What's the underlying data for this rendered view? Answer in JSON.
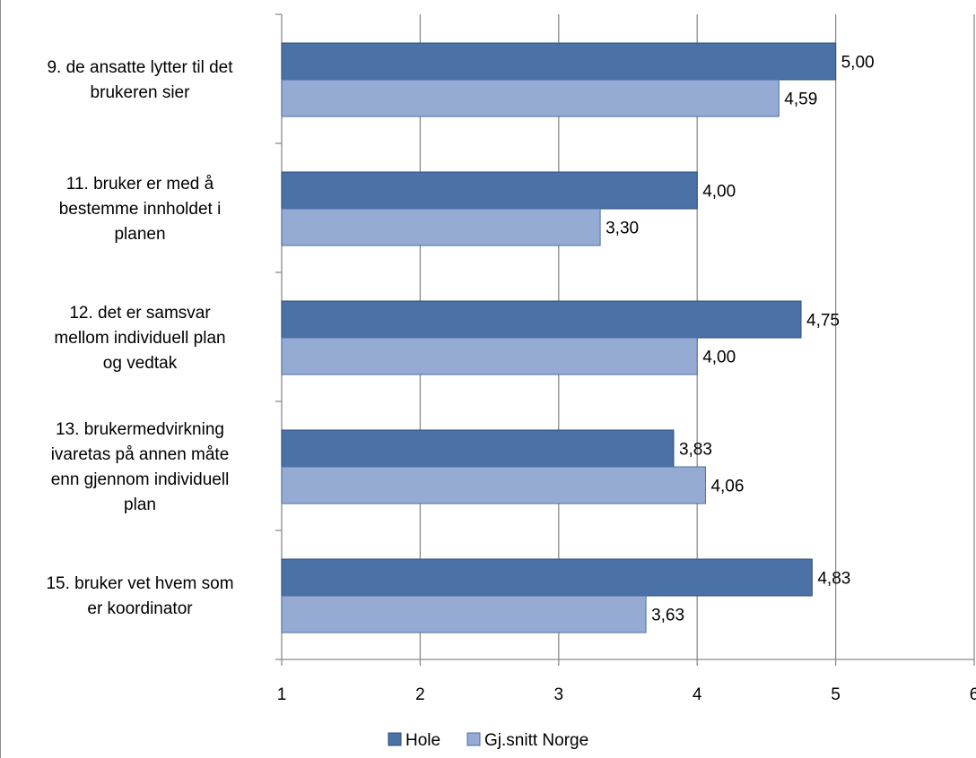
{
  "chart_data": {
    "type": "bar",
    "orientation": "horizontal",
    "title": "",
    "categories": [
      [
        "9. de ansatte lytter til det",
        "brukeren sier"
      ],
      [
        "11. bruker er med å",
        "bestemme innholdet i",
        "planen"
      ],
      [
        "12. det er samsvar",
        "mellom individuell plan",
        "og vedtak"
      ],
      [
        "13. brukermedvirkning",
        "ivaretas på annen måte",
        "enn gjennom individuell",
        "plan"
      ],
      [
        "15. bruker vet hvem som",
        "er koordinator"
      ]
    ],
    "series": [
      {
        "name": "Hole",
        "color": "#4A72A6",
        "stroke": "#2F4E7A",
        "values": [
          5.0,
          4.0,
          4.75,
          3.83,
          4.83
        ],
        "labels": [
          "5,00",
          "4,00",
          "4,75",
          "3,83",
          "4,83"
        ]
      },
      {
        "name": "Gj.snitt Norge",
        "color": "#96ABD4",
        "stroke": "#4A6FA5",
        "values": [
          4.59,
          3.3,
          4.0,
          4.06,
          3.63
        ],
        "labels": [
          "4,59",
          "3,30",
          "4,00",
          "4,06",
          "3,63"
        ]
      }
    ],
    "xlim": [
      1,
      6
    ],
    "xticks": [
      "1",
      "2",
      "3",
      "4",
      "5",
      "6"
    ],
    "grid": "vertical",
    "legend_position": "bottom"
  }
}
